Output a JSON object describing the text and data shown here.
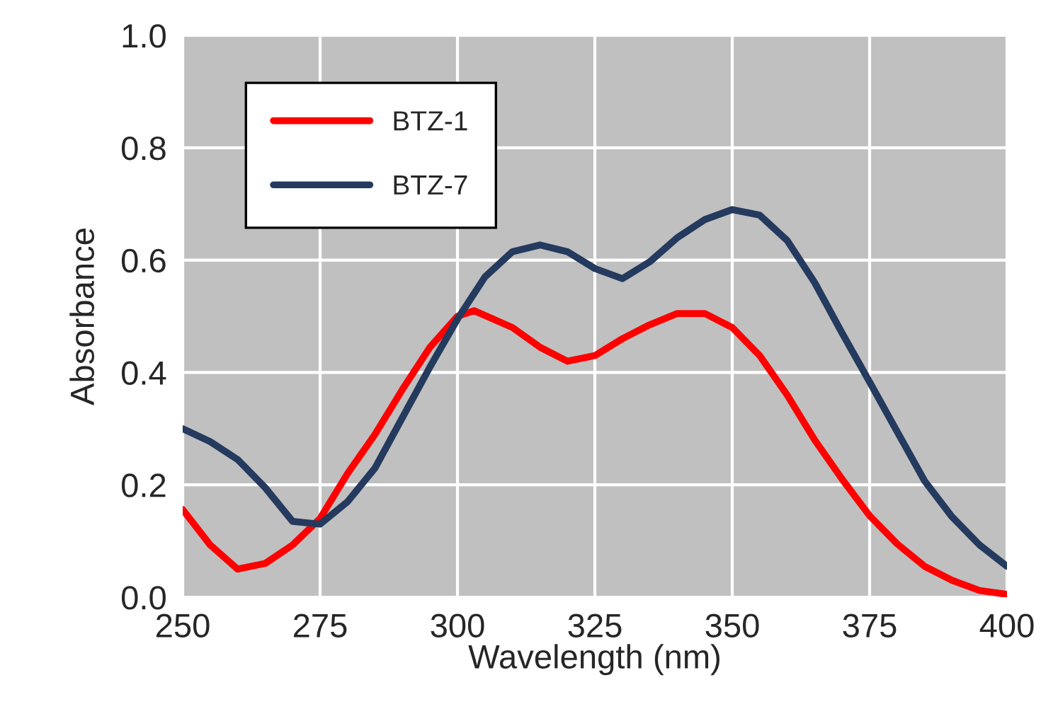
{
  "chart_data": {
    "type": "line",
    "xlabel": "Wavelength (nm)",
    "ylabel": "Absorbance",
    "x": [
      250,
      255,
      260,
      265,
      270,
      275,
      280,
      285,
      290,
      295,
      300,
      303,
      310,
      315,
      320,
      325,
      330,
      335,
      340,
      345,
      350,
      355,
      360,
      365,
      370,
      375,
      380,
      385,
      390,
      395,
      400
    ],
    "series": [
      {
        "name": "BTZ-1",
        "color": "#ff0000",
        "values": [
          0.156,
          0.093,
          0.05,
          0.06,
          0.093,
          0.14,
          0.22,
          0.29,
          0.37,
          0.445,
          0.5,
          0.51,
          0.48,
          0.445,
          0.42,
          0.43,
          0.46,
          0.485,
          0.505,
          0.505,
          0.48,
          0.43,
          0.36,
          0.28,
          0.21,
          0.145,
          0.095,
          0.055,
          0.03,
          0.012,
          0.005
        ]
      },
      {
        "name": "BTZ-7",
        "color": "#243a5e",
        "x": [
          250,
          255,
          260,
          265,
          270,
          275,
          280,
          285,
          290,
          295,
          300,
          305,
          310,
          315,
          320,
          325,
          330,
          335,
          340,
          345,
          350,
          355,
          360,
          365,
          370,
          375,
          380,
          385,
          390,
          395,
          400
        ],
        "values": [
          0.3,
          0.277,
          0.245,
          0.195,
          0.135,
          0.13,
          0.17,
          0.23,
          0.32,
          0.41,
          0.495,
          0.57,
          0.615,
          0.627,
          0.615,
          0.585,
          0.567,
          0.597,
          0.64,
          0.672,
          0.69,
          0.68,
          0.635,
          0.56,
          0.47,
          0.383,
          0.295,
          0.207,
          0.143,
          0.093,
          0.055
        ]
      }
    ],
    "xlim": [
      250,
      400
    ],
    "xticks": [
      250,
      275,
      300,
      325,
      350,
      375,
      400
    ],
    "ylim": [
      0,
      1
    ],
    "yticks": [
      {
        "value": 0,
        "label": "0.0"
      },
      {
        "value": 0.2,
        "label": "0.2"
      },
      {
        "value": 0.4,
        "label": "0.4"
      },
      {
        "value": 0.6,
        "label": "0.6"
      },
      {
        "value": 0.8,
        "label": "0.8"
      },
      {
        "value": 1,
        "label": "1.0"
      }
    ],
    "grid": true,
    "legend": "top left",
    "line_style": "solid",
    "marker": "none"
  }
}
